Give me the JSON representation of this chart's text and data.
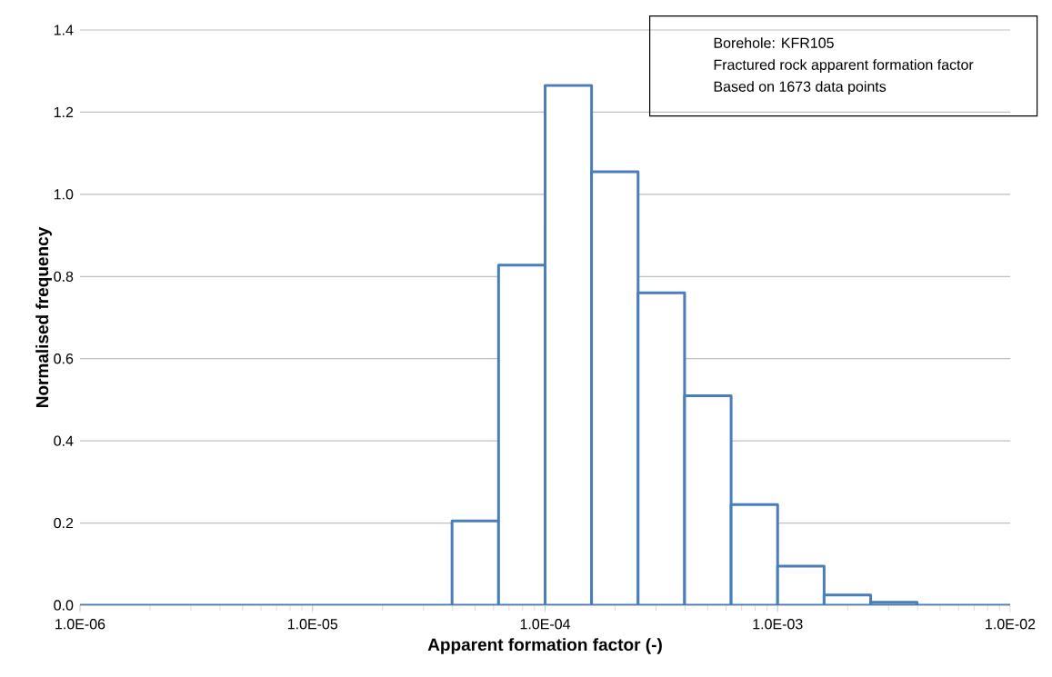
{
  "chart_data": {
    "type": "histogram",
    "xlabel": "Apparent formation factor (-)",
    "ylabel": "Normalised frequency",
    "annotations": [
      "Borehole: KFR105",
      "Fractured rock apparent formation factor",
      "Based on 1673 data points"
    ],
    "bins": [
      1e-06,
      3.981e-05,
      6.31e-05,
      0.0001,
      0.0001585,
      0.0002512,
      0.0003981,
      0.000631,
      0.001,
      0.001585,
      0.002512,
      0.003981,
      0.01
    ],
    "values": [
      0,
      0.205,
      0.828,
      1.265,
      1.055,
      0.76,
      0.51,
      0.245,
      0.095,
      0.025,
      0.007,
      0
    ],
    "color": "#4a7ebb",
    "log": "x",
    "xlim": [
      1e-06,
      0.01
    ],
    "ylim": [
      0,
      1.4
    ],
    "xticks": [
      {
        "value": 1e-06,
        "label": "1.0E-06"
      },
      {
        "value": 1e-05,
        "label": "1.0E-05"
      },
      {
        "value": 0.0001,
        "label": "1.0E-04"
      },
      {
        "value": 0.001,
        "label": "1.0E-03"
      },
      {
        "value": 0.01,
        "label": "1.0E-02"
      }
    ],
    "yticks": [
      {
        "value": 0,
        "label": "0.0"
      },
      {
        "value": 0.2,
        "label": "0.2"
      },
      {
        "value": 0.4,
        "label": "0.4"
      },
      {
        "value": 0.6,
        "label": "0.6"
      },
      {
        "value": 0.8,
        "label": "0.8"
      },
      {
        "value": 1.0,
        "label": "1.0"
      },
      {
        "value": 1.2,
        "label": "1.2"
      },
      {
        "value": 1.4,
        "label": "1.4"
      }
    ],
    "grid": "y"
  }
}
